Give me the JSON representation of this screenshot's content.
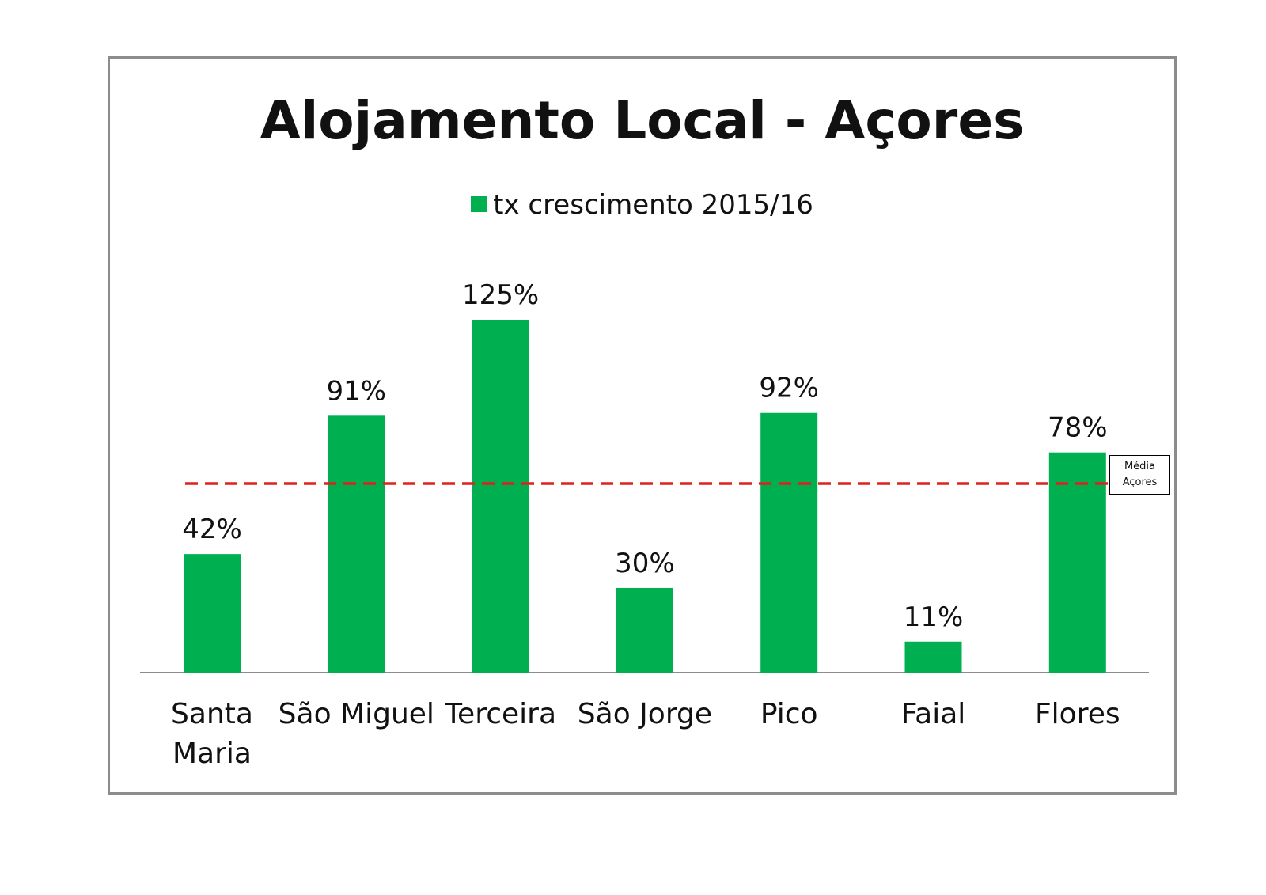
{
  "chart_data": {
    "type": "bar",
    "title": "Alojamento Local - Açores",
    "series": [
      {
        "name": "tx crescimento 2015/16",
        "values": [
          42,
          91,
          125,
          30,
          92,
          11,
          78
        ]
      }
    ],
    "categories": [
      [
        "Santa",
        "Maria"
      ],
      [
        "São Miguel"
      ],
      [
        "Terceira"
      ],
      [
        "São Jorge"
      ],
      [
        "Pico"
      ],
      [
        "Faial"
      ],
      [
        "Flores"
      ]
    ],
    "data_labels": [
      "42%",
      "91%",
      "125%",
      "30%",
      "92%",
      "11%",
      "78%"
    ],
    "ylim": [
      0,
      125
    ],
    "color": "#00b050",
    "average_line": {
      "value": 67,
      "color": "#e0201c",
      "label": [
        "Média",
        "Açores"
      ]
    },
    "legend_position": "top",
    "grid": false
  }
}
